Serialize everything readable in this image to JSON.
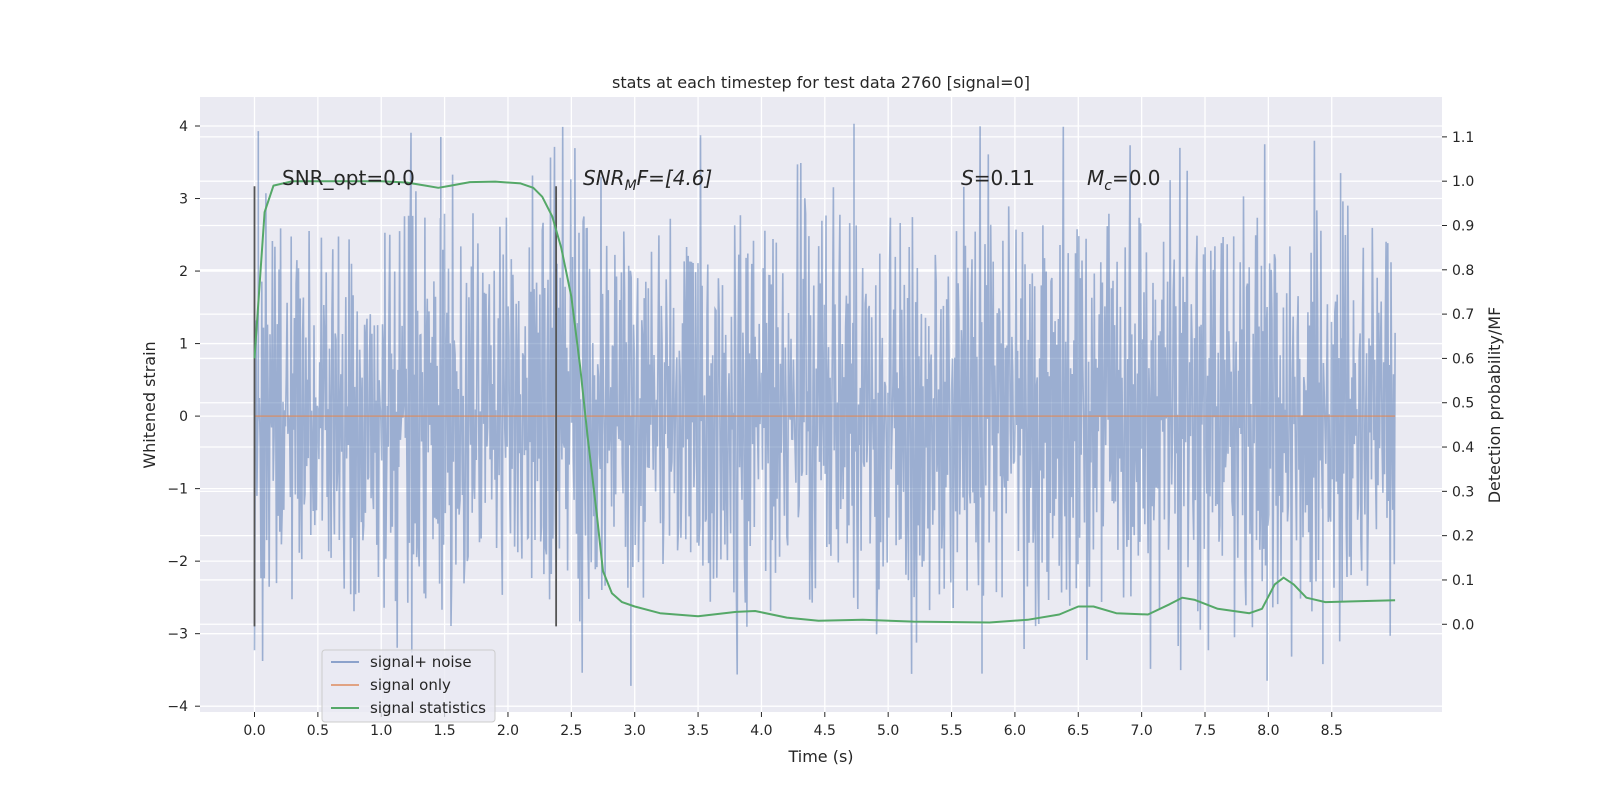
{
  "chart_data": {
    "type": "line",
    "title": "stats at each timestep for test data 2760 [signal=0]",
    "xlabel": "Time (s)",
    "ylabel": "Whitened strain",
    "ylabel_right": "Detection probability/MF",
    "xlim": [
      -0.43,
      9.37
    ],
    "ylim": [
      -4.08,
      4.4
    ],
    "ylim_right": [
      -0.198,
      1.19
    ],
    "x_ticks": [
      0.0,
      0.5,
      1.0,
      1.5,
      2.0,
      2.5,
      3.0,
      3.5,
      4.0,
      4.5,
      5.0,
      5.5,
      6.0,
      6.5,
      7.0,
      7.5,
      8.0,
      8.5
    ],
    "x_tick_labels": [
      "0.0",
      "0.5",
      "1.0",
      "1.5",
      "2.0",
      "2.5",
      "3.0",
      "3.5",
      "4.0",
      "4.5",
      "5.0",
      "5.5",
      "6.0",
      "6.5",
      "7.0",
      "7.5",
      "8.0",
      "8.5"
    ],
    "y_ticks": [
      -4,
      -3,
      -2,
      -1,
      0,
      1,
      2,
      3,
      4
    ],
    "y_tick_labels": [
      "−4",
      "−3",
      "−2",
      "−1",
      "0",
      "1",
      "2",
      "3",
      "4"
    ],
    "y_right_ticks": [
      0.0,
      0.1,
      0.2,
      0.3,
      0.4,
      0.5,
      0.6,
      0.7,
      0.8,
      0.9,
      1.0,
      1.1
    ],
    "y_right_tick_labels": [
      "0.0",
      "0.1",
      "0.2",
      "0.3",
      "0.4",
      "0.5",
      "0.6",
      "0.7",
      "0.8",
      "0.9",
      "1.0",
      "1.1"
    ],
    "grid": true,
    "legend_position": "lower-left",
    "annotations": {
      "snr_opt": "SNR_opt=0.0",
      "snr_mf_main": "SNR",
      "snr_mf_sub": "M",
      "snr_mf_rest": "F=[4.6]",
      "s_main": "S",
      "s_rest": "=0.11",
      "mc_main": "M",
      "mc_sub": "c",
      "mc_rest": "=0.0"
    },
    "vertical_markers": [
      {
        "x": 0.0,
        "y_range": [
          -2.9,
          3.17
        ]
      },
      {
        "x": 2.38,
        "y_range": [
          -2.9,
          3.17
        ]
      }
    ],
    "series": [
      {
        "name": "signal+ noise",
        "color": "#4c72b0",
        "axis": "left",
        "x_range": [
          0.0,
          9.0
        ],
        "envelope_typical": [
          -1.8,
          1.9
        ],
        "envelope_extreme": [
          -3.7,
          4.0
        ],
        "notable_peaks": [
          {
            "x": 0.03,
            "y": 3.93
          },
          {
            "x": 1.47,
            "y": 3.85
          },
          {
            "x": 4.73,
            "y": 4.03
          },
          {
            "x": 8.57,
            "y": 3.35
          },
          {
            "x": 2.97,
            "y": -3.72
          },
          {
            "x": 5.74,
            "y": -3.55
          },
          {
            "x": 7.99,
            "y": -3.65
          },
          {
            "x": 8.43,
            "y": -3.42
          }
        ]
      },
      {
        "name": "signal only",
        "color": "#dd8452",
        "axis": "left",
        "x": [
          0.0,
          9.0
        ],
        "y": [
          0.0,
          0.0
        ]
      },
      {
        "name": "signal statistics",
        "color": "#55a868",
        "axis": "right",
        "x": [
          0.0,
          0.08,
          0.15,
          0.3,
          0.5,
          0.8,
          1.0,
          1.2,
          1.35,
          1.45,
          1.55,
          1.7,
          1.9,
          2.1,
          2.2,
          2.27,
          2.35,
          2.42,
          2.5,
          2.57,
          2.63,
          2.7,
          2.75,
          2.82,
          2.9,
          3.0,
          3.2,
          3.5,
          3.8,
          3.95,
          4.2,
          4.45,
          4.8,
          5.2,
          5.8,
          6.1,
          6.35,
          6.5,
          6.62,
          6.8,
          7.05,
          7.22,
          7.32,
          7.42,
          7.6,
          7.85,
          7.95,
          8.05,
          8.12,
          8.2,
          8.3,
          8.45,
          8.7,
          9.0
        ],
        "y": [
          0.6,
          0.93,
          0.99,
          1.0,
          1.0,
          1.0,
          1.0,
          0.997,
          0.99,
          0.985,
          0.99,
          0.998,
          0.999,
          0.995,
          0.985,
          0.965,
          0.92,
          0.85,
          0.74,
          0.58,
          0.42,
          0.25,
          0.12,
          0.07,
          0.05,
          0.04,
          0.025,
          0.018,
          0.028,
          0.03,
          0.015,
          0.008,
          0.01,
          0.006,
          0.004,
          0.01,
          0.022,
          0.04,
          0.04,
          0.025,
          0.022,
          0.045,
          0.06,
          0.055,
          0.035,
          0.025,
          0.035,
          0.09,
          0.105,
          0.09,
          0.06,
          0.05,
          0.052,
          0.054
        ]
      }
    ]
  }
}
